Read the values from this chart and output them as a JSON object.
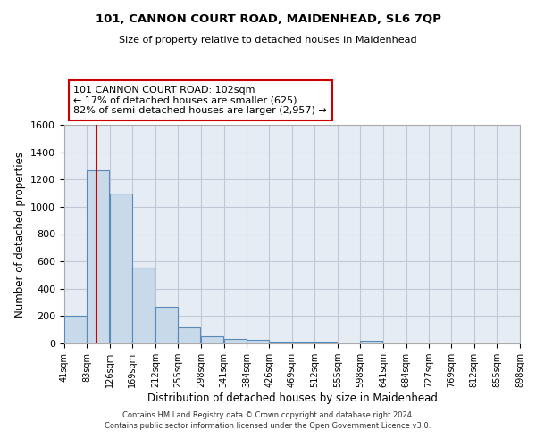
{
  "title": "101, CANNON COURT ROAD, MAIDENHEAD, SL6 7QP",
  "subtitle": "Size of property relative to detached houses in Maidenhead",
  "xlabel": "Distribution of detached houses by size in Maidenhead",
  "ylabel": "Number of detached properties",
  "footer_line1": "Contains HM Land Registry data © Crown copyright and database right 2024.",
  "footer_line2": "Contains public sector information licensed under the Open Government Licence v3.0.",
  "bin_edges": [
    41,
    83,
    126,
    169,
    212,
    255,
    298,
    341,
    384,
    426,
    469,
    512,
    555,
    598,
    641,
    684,
    727,
    769,
    812,
    855,
    898
  ],
  "bar_heights": [
    200,
    1265,
    1095,
    555,
    265,
    120,
    55,
    35,
    25,
    15,
    10,
    10,
    0,
    20,
    0,
    0,
    0,
    0,
    0,
    0
  ],
  "bar_color": "#c8d9ea",
  "bar_edgecolor": "#5a8ab8",
  "grid_color": "#c0c8d8",
  "background_color": "#e6ecf4",
  "property_size": 102,
  "vline_color": "#cc0000",
  "annotation_line1": "101 CANNON COURT ROAD: 102sqm",
  "annotation_line2": "← 17% of detached houses are smaller (625)",
  "annotation_line3": "82% of semi-detached houses are larger (2,957) →",
  "annotation_box_color": "#cc0000",
  "ylim": [
    0,
    1600
  ],
  "yticks": [
    0,
    200,
    400,
    600,
    800,
    1000,
    1200,
    1400,
    1600
  ]
}
